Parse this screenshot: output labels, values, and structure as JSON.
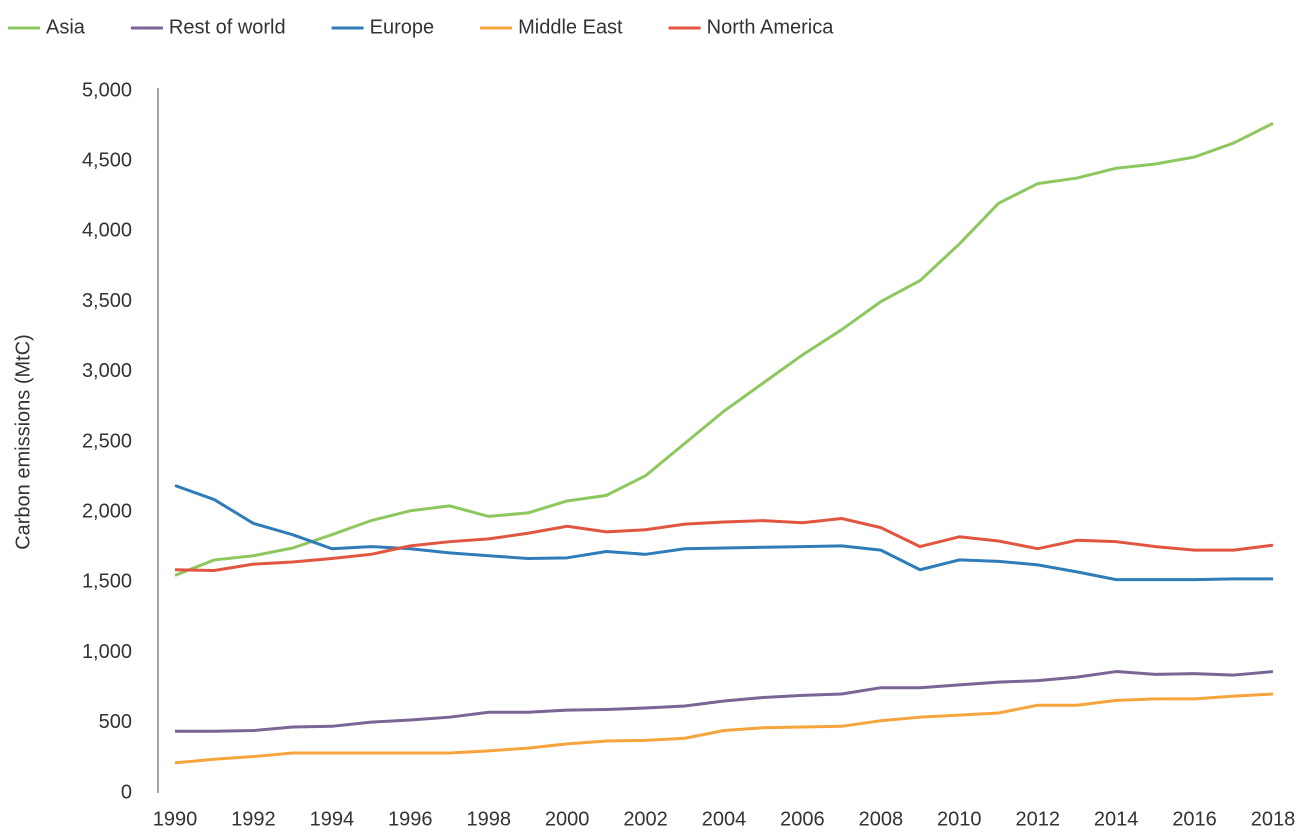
{
  "chart_data": {
    "type": "line",
    "y_label": "Carbon emissions (MtC)",
    "x": [
      1990,
      1991,
      1992,
      1993,
      1994,
      1995,
      1996,
      1997,
      1998,
      1999,
      2000,
      2001,
      2002,
      2003,
      2004,
      2005,
      2006,
      2007,
      2008,
      2009,
      2010,
      2011,
      2012,
      2013,
      2014,
      2015,
      2016,
      2017,
      2018
    ],
    "xlim": [
      1990,
      2018
    ],
    "xticks": [
      1990,
      1992,
      1994,
      1996,
      1998,
      2000,
      2002,
      2004,
      2006,
      2008,
      2010,
      2012,
      2014,
      2016,
      2018
    ],
    "ylim": [
      0,
      5000
    ],
    "yticks": [
      0,
      500,
      {
        "value": 1000,
        "label": "1,000"
      },
      {
        "value": 1500,
        "label": "1,500"
      },
      {
        "value": 2000,
        "label": "2,000"
      },
      {
        "value": 2500,
        "label": "2,500"
      },
      {
        "value": 3000,
        "label": "3,000"
      },
      {
        "value": 3500,
        "label": "3,500"
      },
      {
        "value": 4000,
        "label": "4,000"
      },
      {
        "value": 4500,
        "label": "4,500"
      },
      {
        "value": 5000,
        "label": "5,000"
      }
    ],
    "grid": false,
    "legend": "top-left",
    "series": [
      {
        "name": "Asia",
        "color": "#8dc85f",
        "values": [
          1550,
          1660,
          1690,
          1745,
          1840,
          1940,
          2010,
          2045,
          1970,
          1995,
          2080,
          2120,
          2260,
          2490,
          2720,
          2920,
          3120,
          3300,
          3500,
          3650,
          3910,
          4200,
          4340,
          4380,
          4450,
          4480,
          4530,
          4630,
          4770
        ]
      },
      {
        "name": "Rest of world",
        "color": "#7a6597",
        "values": [
          440,
          440,
          445,
          470,
          475,
          505,
          520,
          540,
          575,
          575,
          590,
          595,
          605,
          620,
          655,
          680,
          695,
          705,
          750,
          750,
          770,
          790,
          800,
          825,
          865,
          845,
          850,
          840,
          865
        ]
      },
      {
        "name": "Europe",
        "color": "#2e7dba",
        "values": [
          2190,
          2090,
          1920,
          1840,
          1740,
          1755,
          1740,
          1710,
          1690,
          1670,
          1675,
          1720,
          1700,
          1740,
          1745,
          1750,
          1755,
          1760,
          1730,
          1590,
          1660,
          1650,
          1625,
          1575,
          1520,
          1520,
          1520,
          1525,
          1525
        ]
      },
      {
        "name": "Middle East",
        "color": "#f6a43c",
        "values": [
          215,
          240,
          260,
          285,
          285,
          285,
          285,
          285,
          300,
          320,
          350,
          370,
          375,
          390,
          445,
          465,
          470,
          475,
          515,
          540,
          555,
          570,
          625,
          625,
          660,
          670,
          670,
          690,
          705
        ]
      },
      {
        "name": "North America",
        "color": "#e15640",
        "values": [
          1590,
          1585,
          1630,
          1645,
          1670,
          1700,
          1760,
          1790,
          1810,
          1850,
          1900,
          1860,
          1875,
          1915,
          1930,
          1940,
          1925,
          1955,
          1890,
          1755,
          1825,
          1795,
          1740,
          1800,
          1790,
          1755,
          1730,
          1730,
          1765
        ]
      }
    ]
  }
}
